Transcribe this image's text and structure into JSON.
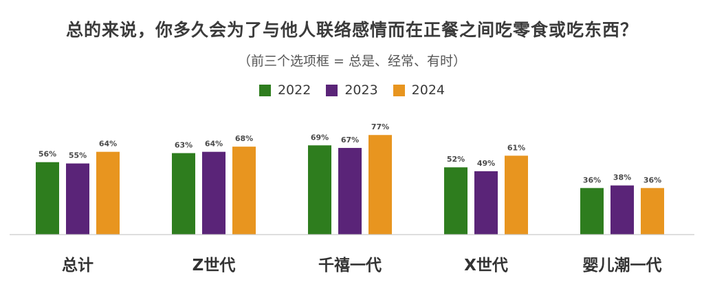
{
  "title": "总的来说，你多久会为了与他人联络感情而在正餐之间吃零食或吃东西？",
  "subtitle": "（前三个选项框 = 总是、经常、有时）",
  "chart_data": {
    "type": "bar",
    "categories": [
      "总计",
      "Z世代",
      "千禧一代",
      "X世代",
      "婴儿潮一代"
    ],
    "series": [
      {
        "name": "2022",
        "color": "#2e7d1e",
        "values": [
          56,
          63,
          69,
          52,
          36
        ]
      },
      {
        "name": "2023",
        "color": "#5a2478",
        "values": [
          55,
          64,
          67,
          49,
          38
        ]
      },
      {
        "name": "2024",
        "color": "#e8951f",
        "values": [
          64,
          68,
          77,
          61,
          36
        ]
      }
    ],
    "value_suffix": "%",
    "ylim": [
      0,
      100
    ],
    "grid": false,
    "legend_position": "top-center"
  }
}
